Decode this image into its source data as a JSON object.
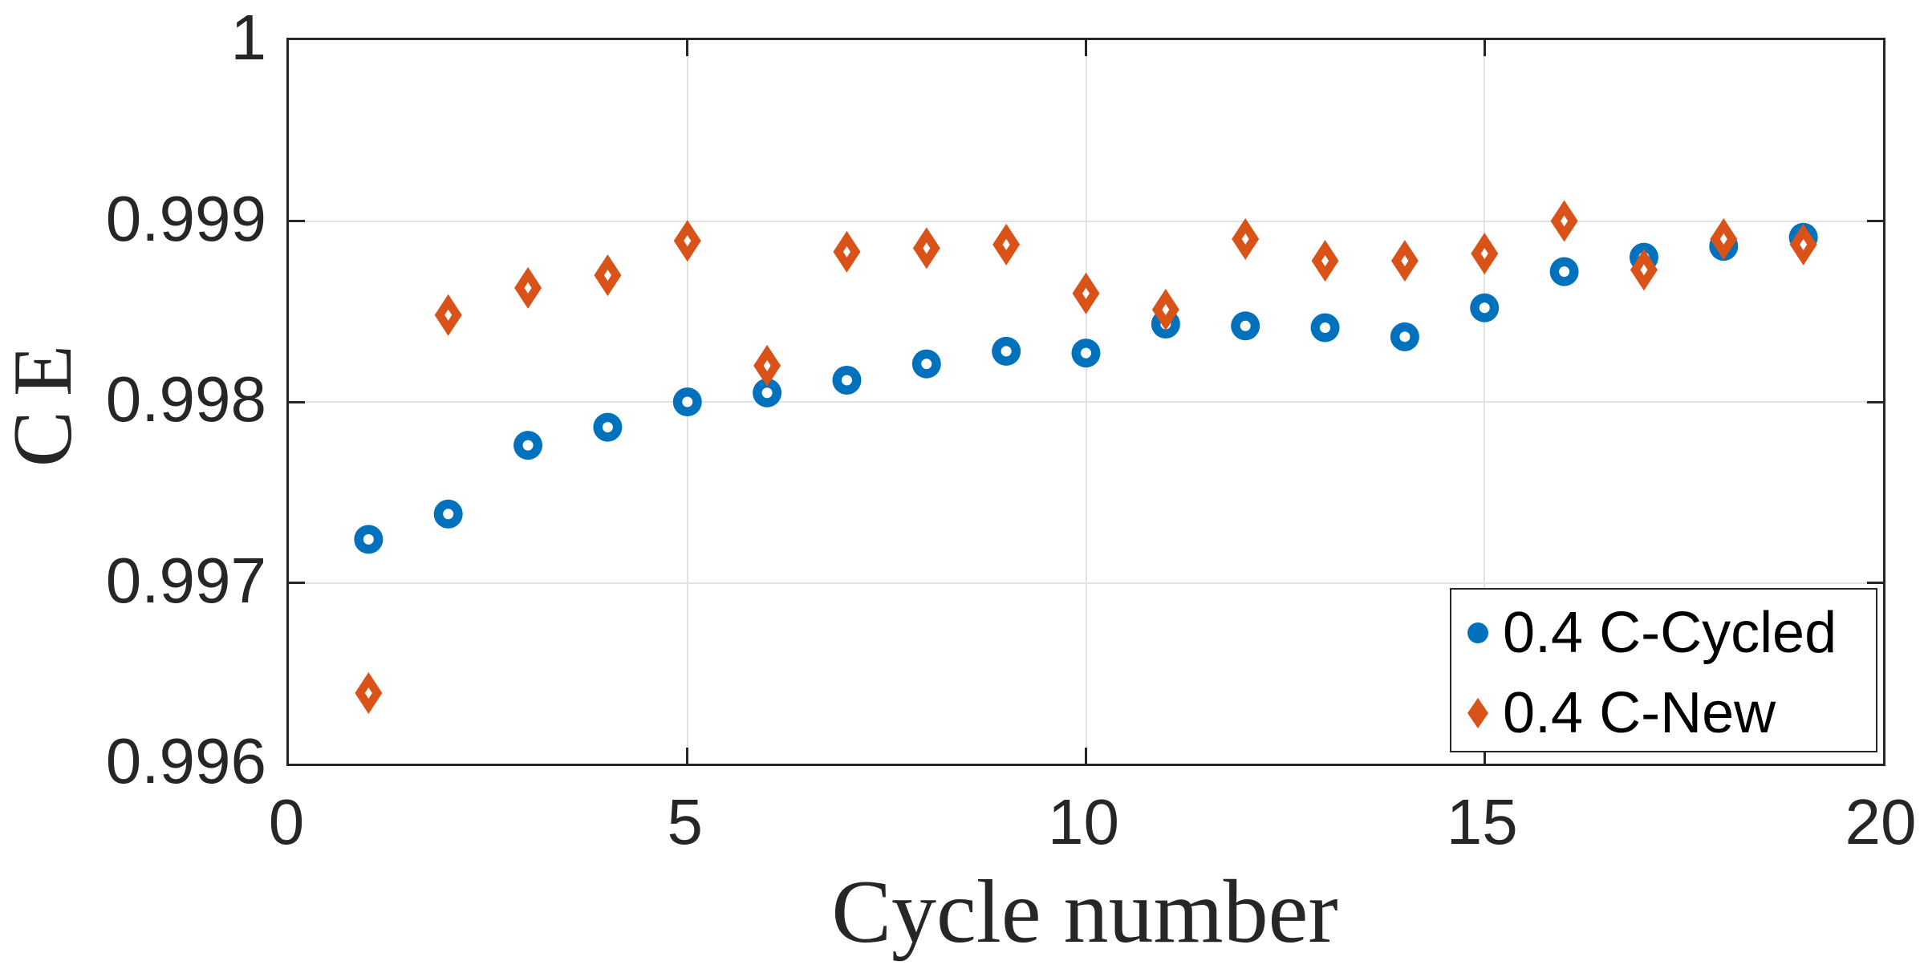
{
  "chart_data": {
    "type": "scatter",
    "title": "",
    "xlabel": "Cycle number",
    "ylabel": "CE",
    "xlim": [
      0,
      20
    ],
    "ylim": [
      0.996,
      1.0
    ],
    "xticks": [
      0,
      5,
      10,
      15,
      20
    ],
    "xtick_labels": [
      "0",
      "5",
      "10",
      "15",
      "20"
    ],
    "yticks": [
      0.996,
      0.997,
      0.998,
      0.999,
      1.0
    ],
    "ytick_labels": [
      "0.996",
      "0.997",
      "0.998",
      "0.999",
      "1"
    ],
    "grid": true,
    "grid_x": [
      5,
      10,
      15
    ],
    "grid_y": [
      0.997,
      0.998,
      0.999
    ],
    "legend_position": "bottom-right",
    "x": [
      1,
      2,
      3,
      4,
      5,
      6,
      7,
      8,
      9,
      10,
      11,
      12,
      13,
      14,
      15,
      16,
      17,
      18,
      19
    ],
    "series": [
      {
        "name": "0.4 C-Cycled",
        "marker": "circle",
        "color": "#0072BD",
        "values": [
          0.99724,
          0.99738,
          0.99776,
          0.99786,
          0.998,
          0.99805,
          0.99812,
          0.99821,
          0.99828,
          0.99827,
          0.99843,
          0.99842,
          0.99841,
          0.99836,
          0.99852,
          0.99872,
          0.9988,
          0.99886,
          0.99891
        ]
      },
      {
        "name": "0.4 C-New",
        "marker": "diamond",
        "color": "#D95319",
        "values": [
          0.99639,
          0.99848,
          0.99863,
          0.9987,
          0.99889,
          0.9982,
          0.99883,
          0.99885,
          0.99887,
          0.9986,
          0.99851,
          0.9989,
          0.99878,
          0.99878,
          0.99882,
          0.999,
          0.99873,
          0.9989,
          0.99887
        ]
      }
    ],
    "colors": {
      "axis": "#262626",
      "grid": "#e2e2e2",
      "background": "#ffffff",
      "tick_text": "#262626"
    }
  }
}
